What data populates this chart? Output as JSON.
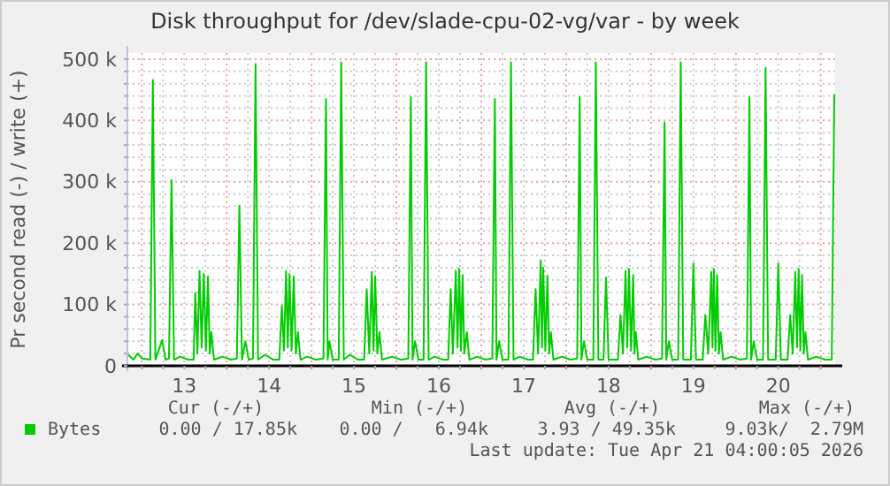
{
  "chart_data": {
    "type": "line",
    "title": "Disk throughput for /dev/slade-cpu-02-vg/var - by week",
    "ylabel": "Pr second read (-) / write (+)",
    "xlim": [
      12.83,
      21.17
    ],
    "xticks": [
      {
        "value": 13,
        "label": null
      },
      {
        "value": 13.25,
        "label": null
      },
      {
        "value": 13.5,
        "label": "13"
      },
      {
        "value": 13.75,
        "label": null
      },
      {
        "value": 14,
        "label": null
      },
      {
        "value": 14.25,
        "label": null
      },
      {
        "value": 14.5,
        "label": "14"
      },
      {
        "value": 14.75,
        "label": null
      },
      {
        "value": 15,
        "label": null
      },
      {
        "value": 15.25,
        "label": null
      },
      {
        "value": 15.5,
        "label": "15"
      },
      {
        "value": 15.75,
        "label": null
      },
      {
        "value": 16,
        "label": null
      },
      {
        "value": 16.25,
        "label": null
      },
      {
        "value": 16.5,
        "label": "16"
      },
      {
        "value": 16.75,
        "label": null
      },
      {
        "value": 17,
        "label": null
      },
      {
        "value": 17.25,
        "label": null
      },
      {
        "value": 17.5,
        "label": "17"
      },
      {
        "value": 17.75,
        "label": null
      },
      {
        "value": 18,
        "label": null
      },
      {
        "value": 18.25,
        "label": null
      },
      {
        "value": 18.5,
        "label": "18"
      },
      {
        "value": 18.75,
        "label": null
      },
      {
        "value": 19,
        "label": null
      },
      {
        "value": 19.25,
        "label": null
      },
      {
        "value": 19.5,
        "label": "19"
      },
      {
        "value": 19.75,
        "label": null
      },
      {
        "value": 20,
        "label": null
      },
      {
        "value": 20.25,
        "label": null
      },
      {
        "value": 20.5,
        "label": "20"
      },
      {
        "value": 20.75,
        "label": null
      },
      {
        "value": 21,
        "label": null
      }
    ],
    "ylim": [
      0,
      510000
    ],
    "yticks": [
      0,
      {
        "value": 20000,
        "label": null
      },
      {
        "value": 40000,
        "label": null
      },
      {
        "value": 60000,
        "label": null
      },
      {
        "value": 80000,
        "label": null
      },
      {
        "value": 100000,
        "label": "100 k"
      },
      {
        "value": 120000,
        "label": null
      },
      {
        "value": 140000,
        "label": null
      },
      {
        "value": 160000,
        "label": null
      },
      {
        "value": 180000,
        "label": null
      },
      {
        "value": 200000,
        "label": "200 k"
      },
      {
        "value": 220000,
        "label": null
      },
      {
        "value": 240000,
        "label": null
      },
      {
        "value": 260000,
        "label": null
      },
      {
        "value": 280000,
        "label": null
      },
      {
        "value": 300000,
        "label": "300 k"
      },
      {
        "value": 320000,
        "label": null
      },
      {
        "value": 340000,
        "label": null
      },
      {
        "value": 360000,
        "label": null
      },
      {
        "value": 380000,
        "label": null
      },
      {
        "value": 400000,
        "label": "400 k"
      },
      {
        "value": 420000,
        "label": null
      },
      {
        "value": 440000,
        "label": null
      },
      {
        "value": 460000,
        "label": null
      },
      {
        "value": 480000,
        "label": null
      },
      {
        "value": 500000,
        "label": "500 k"
      }
    ],
    "grid": true,
    "legend": "bottom",
    "annotations": [
      "Cur (-/+)",
      "Min (-/+)",
      "Avg (-/+)",
      "Max (-/+)",
      "0.00 / 17.85k",
      "0.00 /   6.94k",
      "3.93 / 49.35k",
      "9.03k/  2.79M",
      "Last update: Tue Apr 21 04:00:05 2026"
    ],
    "series": [
      {
        "name": "Bytes",
        "color": "#00cc00",
        "x": [
          12.84,
          12.9,
          12.95,
          13.0,
          13.1,
          13.13,
          13.16,
          13.24,
          13.28,
          13.32,
          13.35,
          13.38,
          13.45,
          13.55,
          13.61,
          13.63,
          13.655,
          13.68,
          13.705,
          13.73,
          13.755,
          13.78,
          13.8,
          13.82,
          13.85,
          13.95,
          14.05,
          14.12,
          14.15,
          14.18,
          14.22,
          14.26,
          14.31,
          14.34,
          14.37,
          14.45,
          14.55,
          14.62,
          14.65,
          14.675,
          14.7,
          14.72,
          14.74,
          14.765,
          14.79,
          14.815,
          14.84,
          14.87,
          14.95,
          15.05,
          15.14,
          15.17,
          15.19,
          15.21,
          15.25,
          15.32,
          15.35,
          15.38,
          15.45,
          15.55,
          15.62,
          15.65,
          15.68,
          15.71,
          15.73,
          15.75,
          15.775,
          15.8,
          15.83,
          15.95,
          16.05,
          16.14,
          16.17,
          16.19,
          16.22,
          16.26,
          16.32,
          16.35,
          16.38,
          16.45,
          16.55,
          16.61,
          16.64,
          16.665,
          16.7,
          16.72,
          16.74,
          16.76,
          16.78,
          16.8,
          16.83,
          16.86,
          16.95,
          17.05,
          17.13,
          17.16,
          17.18,
          17.21,
          17.25,
          17.32,
          17.35,
          17.38,
          17.45,
          17.55,
          17.61,
          17.64,
          17.67,
          17.7,
          17.715,
          17.73,
          17.755,
          17.78,
          17.8,
          17.82,
          17.85,
          17.95,
          18.05,
          18.13,
          18.16,
          18.18,
          18.21,
          18.25,
          18.32,
          18.35,
          18.38,
          18.44,
          18.47,
          18.5,
          18.61,
          18.64,
          18.67,
          18.7,
          18.72,
          18.74,
          18.765,
          18.79,
          18.805,
          18.82,
          18.85,
          18.95,
          19.05,
          19.13,
          19.16,
          19.18,
          19.21,
          19.25,
          19.32,
          19.35,
          19.38,
          19.47,
          19.5,
          19.53,
          19.61,
          19.64,
          19.675,
          19.71,
          19.725,
          19.74,
          19.76,
          19.78,
          19.8,
          19.82,
          19.85,
          19.95,
          20.05,
          20.13,
          20.16,
          20.18,
          20.21,
          20.25,
          20.32,
          20.35,
          20.38,
          20.47,
          20.5,
          20.53,
          20.61,
          20.64,
          20.67,
          20.7,
          20.72,
          20.74,
          20.76,
          20.78,
          20.8,
          20.82,
          20.85,
          20.95,
          21.05,
          21.13,
          21.16
        ],
        "values": [
          18000,
          10000,
          20000,
          12000,
          10000,
          466000,
          10000,
          42000,
          10000,
          12000,
          303000,
          10000,
          15000,
          10000,
          10000,
          119000,
          20000,
          155000,
          30000,
          150000,
          25000,
          146000,
          20000,
          55000,
          10000,
          15000,
          10000,
          12000,
          261000,
          10000,
          40000,
          10000,
          12000,
          492000,
          10000,
          18000,
          10000,
          10000,
          98000,
          25000,
          155000,
          30000,
          150000,
          25000,
          146000,
          20000,
          55000,
          10000,
          15000,
          10000,
          12000,
          435000,
          10000,
          40000,
          10000,
          10000,
          495000,
          10000,
          18000,
          10000,
          10000,
          125000,
          20000,
          153000,
          25000,
          146000,
          20000,
          55000,
          10000,
          15000,
          10000,
          12000,
          438000,
          10000,
          40000,
          10000,
          10000,
          495000,
          10000,
          15000,
          10000,
          10000,
          125000,
          20000,
          155000,
          30000,
          158000,
          25000,
          148000,
          20000,
          55000,
          10000,
          15000,
          10000,
          12000,
          435000,
          10000,
          40000,
          10000,
          10000,
          495000,
          10000,
          15000,
          10000,
          10000,
          125000,
          20000,
          172000,
          30000,
          160000,
          25000,
          147000,
          20000,
          55000,
          10000,
          15000,
          10000,
          12000,
          438000,
          10000,
          40000,
          10000,
          10000,
          495000,
          10000,
          10000,
          144000,
          10000,
          10000,
          83000,
          20000,
          155000,
          30000,
          158000,
          25000,
          148000,
          20000,
          55000,
          10000,
          15000,
          10000,
          12000,
          397000,
          10000,
          40000,
          10000,
          10000,
          495000,
          10000,
          10000,
          167000,
          10000,
          10000,
          83000,
          20000,
          153000,
          30000,
          158000,
          25000,
          148000,
          20000,
          55000,
          10000,
          15000,
          10000,
          12000,
          438000,
          10000,
          40000,
          10000,
          10000,
          486000,
          10000,
          10000,
          167000,
          10000,
          10000,
          83000,
          20000,
          153000,
          30000,
          158000,
          25000,
          148000,
          20000,
          55000,
          10000,
          15000,
          10000,
          10000,
          443000
        ]
      }
    ]
  }
}
